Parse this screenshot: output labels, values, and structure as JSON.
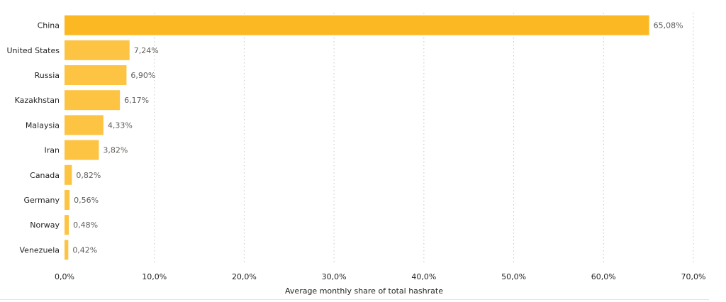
{
  "chart_data": {
    "type": "bar",
    "orientation": "horizontal",
    "categories": [
      "China",
      "United States",
      "Russia",
      "Kazakhstan",
      "Malaysia",
      "Iran",
      "Canada",
      "Germany",
      "Norway",
      "Venezuela"
    ],
    "values": [
      65.08,
      7.24,
      6.9,
      6.17,
      4.33,
      3.82,
      0.82,
      0.56,
      0.48,
      0.42
    ],
    "data_labels": [
      "65,08%",
      "7,24%",
      "6,90%",
      "6,17%",
      "4,33%",
      "3,82%",
      "0,82%",
      "0,56%",
      "0,48%",
      "0,42%"
    ],
    "xlim": [
      0,
      70
    ],
    "xticks": [
      0,
      10,
      20,
      30,
      40,
      50,
      60,
      70
    ],
    "xtick_labels": [
      "0,0%",
      "10,0%",
      "20,0%",
      "30,0%",
      "40,0%",
      "50,0%",
      "60,0%",
      "70,0%"
    ],
    "xlabel": "Average monthly share of total hashrate",
    "ylabel": "",
    "title": "",
    "grid": "vertical dotted",
    "colors": {
      "highlight": "#fbb823",
      "bar": "#fdc444"
    }
  }
}
